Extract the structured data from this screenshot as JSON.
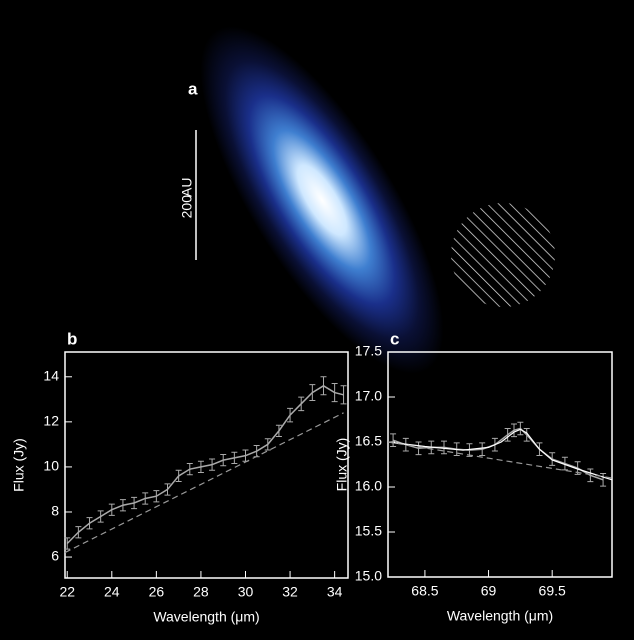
{
  "image_panel": {
    "label": "a",
    "scale_value": "200",
    "scale_unit": "AU"
  },
  "chart_data": [
    {
      "type": "line",
      "label": "b",
      "xlabel": "Wavelength (μm)",
      "ylabel": "Flux (Jy)",
      "xlim": [
        21.9,
        34.6
      ],
      "ylim": [
        5.07,
        15.1
      ],
      "xticks": [
        22,
        24,
        26,
        28,
        30,
        32,
        34
      ],
      "yticks": [
        6,
        8,
        10,
        12,
        14
      ],
      "series": [
        {
          "style": "errorbar",
          "color": "#aaaaaa",
          "x": [
            22,
            22.5,
            23,
            23.5,
            24,
            24.5,
            25,
            25.5,
            26,
            26.5,
            27,
            27.5,
            28,
            28.5,
            29,
            29.5,
            30,
            30.5,
            31,
            31.5,
            32,
            32.5,
            33,
            33.5,
            34,
            34.4
          ],
          "values": [
            6.6,
            7.1,
            7.5,
            7.8,
            8.1,
            8.3,
            8.4,
            8.6,
            8.7,
            9.0,
            9.6,
            9.9,
            10.0,
            10.1,
            10.3,
            10.4,
            10.5,
            10.7,
            11.0,
            11.6,
            12.3,
            12.8,
            13.3,
            13.6,
            13.3,
            13.2
          ],
          "errors": [
            0.25,
            0.25,
            0.25,
            0.25,
            0.25,
            0.25,
            0.25,
            0.25,
            0.25,
            0.25,
            0.25,
            0.25,
            0.25,
            0.25,
            0.25,
            0.25,
            0.25,
            0.25,
            0.25,
            0.25,
            0.3,
            0.3,
            0.35,
            0.4,
            0.4,
            0.4
          ]
        },
        {
          "style": "dashed",
          "color": "#999999",
          "x": [
            21.9,
            34.4
          ],
          "values": [
            6.2,
            12.4
          ]
        }
      ]
    },
    {
      "type": "line",
      "label": "c",
      "xlabel": "Wavelength (μm)",
      "ylabel": "Flux (Jy)",
      "xlim": [
        68.21,
        69.97
      ],
      "ylim": [
        15.0,
        17.5
      ],
      "xticks": [
        68.5,
        69.0,
        69.5
      ],
      "yticks": [
        {
          "value": 15,
          "label": "15.0"
        },
        15.5,
        {
          "value": 16,
          "label": "16.0"
        },
        16.5,
        {
          "value": 17,
          "label": "17.0"
        },
        17.5
      ],
      "series": [
        {
          "style": "errorbar",
          "color": "#aaaaaa",
          "x": [
            68.25,
            68.35,
            68.45,
            68.55,
            68.65,
            68.75,
            68.85,
            68.95,
            69.05,
            69.15,
            69.2,
            69.25,
            69.3,
            69.4,
            69.5,
            69.6,
            69.7,
            69.8,
            69.9
          ],
          "values": [
            16.52,
            16.47,
            16.43,
            16.44,
            16.44,
            16.42,
            16.41,
            16.42,
            16.47,
            16.58,
            16.63,
            16.65,
            16.58,
            16.42,
            16.31,
            16.26,
            16.21,
            16.13,
            16.08
          ],
          "errors": [
            0.07,
            0.07,
            0.07,
            0.07,
            0.07,
            0.07,
            0.07,
            0.07,
            0.07,
            0.07,
            0.07,
            0.07,
            0.07,
            0.07,
            0.07,
            0.07,
            0.07,
            0.07,
            0.07
          ]
        },
        {
          "style": "solid",
          "color": "#ffffff",
          "x": [
            68.21,
            68.5,
            68.8,
            69.0,
            69.1,
            69.2,
            69.25,
            69.3,
            69.4,
            69.5,
            69.7,
            69.97
          ],
          "values": [
            16.5,
            16.45,
            16.41,
            16.44,
            16.5,
            16.61,
            16.64,
            16.6,
            16.42,
            16.3,
            16.2,
            16.08
          ]
        },
        {
          "style": "dashed",
          "color": "#999999",
          "x": [
            68.21,
            69.97
          ],
          "values": [
            16.5,
            16.1
          ]
        }
      ]
    }
  ]
}
